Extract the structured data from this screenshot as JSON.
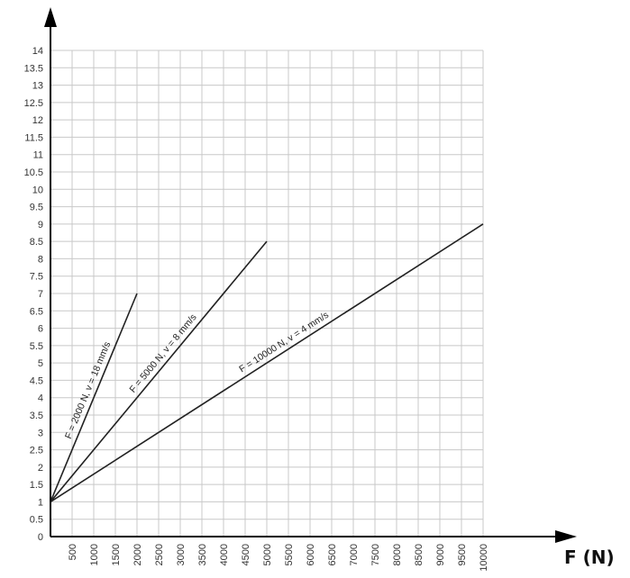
{
  "chart_data": {
    "type": "line",
    "title": "",
    "xlabel": "F (N)",
    "ylabel": "",
    "x_ticks": [
      500,
      1000,
      1500,
      2000,
      2500,
      3000,
      3500,
      4000,
      4500,
      5000,
      5500,
      6000,
      6500,
      7000,
      7500,
      8000,
      8500,
      9000,
      9500,
      10000
    ],
    "y_ticks": [
      "0",
      "0.5",
      "1",
      "1.5",
      "2",
      "2.5",
      "3",
      "3.5",
      "4",
      "4.5",
      "5",
      "5.5",
      "6",
      "6.5",
      "7",
      "7.5",
      "8",
      "8.5",
      "9",
      "9.5",
      "10",
      "10.5",
      "11",
      "11.5",
      "12",
      "12.5",
      "13",
      "13.5",
      "14"
    ],
    "xlim": [
      0,
      10000
    ],
    "ylim": [
      0,
      14
    ],
    "grid": true,
    "series": [
      {
        "name": "F = 2000 N, v = 18 mm/s",
        "x": [
          0,
          2000
        ],
        "y": [
          1,
          7
        ]
      },
      {
        "name": "F = 5000 N, v = 8 mm/s",
        "x": [
          0,
          5000
        ],
        "y": [
          1,
          8.5
        ]
      },
      {
        "name": "F = 10000 N, v = 4 mm/s",
        "x": [
          0,
          10000
        ],
        "y": [
          1,
          9
        ]
      }
    ]
  }
}
